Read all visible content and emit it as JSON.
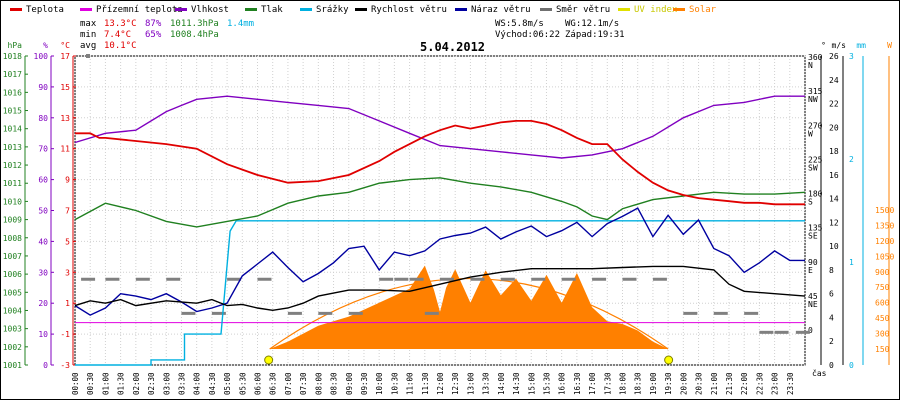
{
  "chart_data": {
    "type": "line",
    "date": "5.04.2012",
    "legend": [
      {
        "label": "Teplota",
        "color": "#e00000"
      },
      {
        "label": "Přízemní teplota",
        "color": "#e000e0"
      },
      {
        "label": "Vlhkost",
        "color": "#8000c0"
      },
      {
        "label": "Tlak",
        "color": "#208020"
      },
      {
        "label": "Srážky",
        "color": "#00b0e0"
      },
      {
        "label": "Rychlost větru",
        "color": "#000000"
      },
      {
        "label": "Náraz větru",
        "color": "#0000a0"
      },
      {
        "label": "Směr větru",
        "color": "#707070"
      },
      {
        "label": "UV index",
        "color": "#e0e000"
      },
      {
        "label": "Solar",
        "color": "#ff8000"
      }
    ],
    "stats": {
      "max_label": "max",
      "max_temp": "13.3°C",
      "max_hum": "87%",
      "max_press": "1011.3hPa",
      "rain": "1.4mm",
      "min_label": "min",
      "min_temp": "7.4°C",
      "min_hum": "65%",
      "min_press": "1008.4hPa",
      "avg_label": "avg",
      "avg_temp": "10.1°C"
    },
    "wind_info": {
      "ws": "WS:5.8m/s",
      "wg": "WG:12.1m/s",
      "sunrise": "Východ:06:22",
      "sunset": "Západ:19:31"
    },
    "left_axes": [
      {
        "unit": "hPa",
        "color": "#208020",
        "ticks": [
          "1018",
          "1017",
          "1016",
          "1015",
          "1014",
          "1013",
          "1012",
          "1011",
          "1010",
          "1009",
          "1008",
          "1007",
          "1006",
          "1005",
          "1004",
          "1003",
          "1002",
          "1001"
        ]
      },
      {
        "unit": "%",
        "color": "#8000c0",
        "ticks": [
          "100",
          "90",
          "80",
          "70",
          "60",
          "50",
          "40",
          "30",
          "20",
          "10",
          "0"
        ]
      },
      {
        "unit": "°C",
        "color": "#e00000",
        "ticks": [
          "17",
          "15",
          "13",
          "11",
          "9",
          "7",
          "5",
          "3",
          "1",
          "-1",
          "-3"
        ]
      }
    ],
    "right_axes": [
      {
        "unit": "°",
        "color": "#000000",
        "ticks": [
          "360",
          "315",
          "270",
          "225",
          "180",
          "135",
          "90",
          "45",
          "0"
        ],
        "dirs": [
          "N",
          "NW",
          "W",
          "SW",
          "S",
          "SE",
          "E",
          "NE",
          ""
        ]
      },
      {
        "unit": "m/s",
        "color": "#000000",
        "ticks": [
          "26",
          "24",
          "22",
          "20",
          "18",
          "16",
          "14",
          "12",
          "10",
          "8",
          "6",
          "4",
          "2",
          "0"
        ]
      },
      {
        "unit": "mm",
        "color": "#00b0e0",
        "ticks": [
          "3",
          "2",
          "1",
          "0"
        ]
      },
      {
        "unit": "W",
        "color": "#ff8000",
        "ticks": [
          "1500",
          "1350",
          "1200",
          "1050",
          "900",
          "750",
          "600",
          "450",
          "300",
          "150"
        ]
      }
    ],
    "x_ticks": [
      "00:00",
      "00:30",
      "01:00",
      "01:30",
      "02:00",
      "02:30",
      "03:00",
      "03:30",
      "04:00",
      "04:30",
      "05:00",
      "05:30",
      "06:00",
      "06:30",
      "07:00",
      "07:30",
      "08:00",
      "08:30",
      "09:00",
      "09:30",
      "10:00",
      "10:30",
      "11:00",
      "11:30",
      "12:00",
      "12:30",
      "13:00",
      "13:30",
      "14:00",
      "14:30",
      "15:00",
      "15:30",
      "16:00",
      "16:30",
      "17:00",
      "17:30",
      "18:00",
      "18:30",
      "19:00",
      "19:30",
      "20:00",
      "20:30",
      "21:00",
      "21:30",
      "22:00",
      "22:30",
      "23:00",
      "23:30"
    ],
    "x_unit": "čas",
    "series": [
      {
        "name": "Teplota",
        "unit": "°C",
        "hours": [
          0,
          0.5,
          0.8,
          1,
          2,
          3,
          4,
          5,
          6,
          7,
          8,
          9,
          10,
          10.5,
          11,
          11.5,
          12,
          12.5,
          13,
          13.5,
          14,
          14.5,
          15,
          15.5,
          16,
          16.5,
          17,
          17.5,
          18,
          18.5,
          19,
          19.5,
          20,
          20.5,
          21,
          21.5,
          22,
          22.5,
          23,
          23.5,
          24
        ],
        "values": [
          12,
          12,
          11.7,
          11.7,
          11.5,
          11.3,
          11,
          10,
          9.3,
          8.8,
          8.9,
          9.3,
          10.2,
          10.8,
          11.3,
          11.8,
          12.2,
          12.5,
          12.3,
          12.5,
          12.7,
          12.8,
          12.8,
          12.6,
          12.2,
          11.7,
          11.3,
          11.3,
          10.3,
          9.5,
          8.8,
          8.3,
          8,
          7.8,
          7.7,
          7.6,
          7.5,
          7.5,
          7.4,
          7.4,
          7.4
        ]
      },
      {
        "name": "Vlhkost",
        "unit": "%",
        "hours": [
          0,
          1,
          2,
          3,
          3.5,
          4,
          5,
          6,
          7,
          8,
          9,
          10,
          11,
          12,
          13,
          14,
          15,
          16,
          17,
          18,
          19,
          20,
          21,
          22,
          23,
          23.5,
          24
        ],
        "values": [
          72,
          75,
          76,
          82,
          84,
          86,
          87,
          86,
          85,
          84,
          83,
          79,
          75,
          71,
          70,
          69,
          68,
          67,
          68,
          70,
          74,
          80,
          84,
          85,
          87,
          87,
          87
        ]
      },
      {
        "name": "Tlak",
        "unit": "hPa",
        "hours": [
          0,
          1,
          2,
          3,
          4,
          5,
          6,
          7,
          8,
          9,
          10,
          11,
          12,
          13,
          14,
          15,
          16,
          16.5,
          17,
          17.5,
          18,
          19,
          20,
          21,
          22,
          23,
          24
        ],
        "values": [
          1009,
          1009.9,
          1009.5,
          1008.9,
          1008.6,
          1008.9,
          1009.2,
          1009.9,
          1010.3,
          1010.5,
          1011,
          1011.2,
          1011.3,
          1011,
          1010.8,
          1010.5,
          1010,
          1009.7,
          1009.2,
          1009,
          1009.6,
          1010.1,
          1010.3,
          1010.5,
          1010.4,
          1010.4,
          1010.5
        ]
      },
      {
        "name": "Srážky",
        "unit": "mm",
        "hours": [
          0,
          2.5,
          2.5,
          3.6,
          3.6,
          4.8,
          5.1,
          5.3,
          24
        ],
        "values": [
          0,
          0,
          0.05,
          0.05,
          0.3,
          0.3,
          1.3,
          1.4,
          1.4
        ]
      },
      {
        "name": "Rychlost větru",
        "unit": "m/s",
        "hours": [
          0,
          0.5,
          1,
          1.5,
          2,
          3,
          4,
          4.5,
          5,
          5.5,
          6,
          6.5,
          7,
          7.5,
          8,
          9,
          10,
          11,
          12,
          13,
          14,
          15,
          16,
          17,
          18,
          19,
          20,
          21,
          21.5,
          22,
          23,
          24
        ],
        "values": [
          5,
          5.4,
          5.2,
          5.5,
          5,
          5.4,
          5.2,
          5.5,
          5,
          5.1,
          4.8,
          4.6,
          4.8,
          5.2,
          5.8,
          6.3,
          6.3,
          6.2,
          6.8,
          7.4,
          7.8,
          8.1,
          8.1,
          8.1,
          8.2,
          8.3,
          8.3,
          8,
          6.8,
          6.2,
          6,
          5.8
        ]
      },
      {
        "name": "Náraz větru",
        "unit": "m/s",
        "hours": [
          0,
          0.5,
          1,
          1.5,
          2,
          2.5,
          3,
          3.5,
          4,
          4.5,
          5,
          5.5,
          6,
          6.5,
          7,
          7.5,
          8,
          8.5,
          9,
          9.5,
          10,
          10.5,
          11,
          11.5,
          12,
          12.5,
          13,
          13.5,
          14,
          14.5,
          15,
          15.5,
          16,
          16.5,
          17,
          17.5,
          18,
          18.5,
          19,
          19.5,
          20,
          20.5,
          21,
          21.5,
          22,
          22.5,
          23,
          23.5,
          24
        ],
        "values": [
          5,
          4.2,
          4.8,
          6,
          5.8,
          5.5,
          6,
          5.3,
          4.5,
          4.8,
          5.2,
          7.5,
          8.5,
          9.5,
          8.2,
          7,
          7.7,
          8.6,
          9.8,
          10,
          8,
          9.5,
          9.2,
          9.6,
          10.6,
          10.9,
          11.1,
          11.6,
          10.6,
          11.2,
          11.7,
          10.8,
          11.3,
          12,
          10.8,
          11.9,
          12.5,
          13.2,
          10.8,
          12.6,
          11,
          12.2,
          9.8,
          9.2,
          7.8,
          8.6,
          9.6,
          8.8,
          8.8
        ]
      },
      {
        "name": "Solar",
        "unit": "W",
        "hours": [
          6.4,
          7,
          8,
          9,
          10,
          11,
          11.5,
          11.8,
          12,
          12.2,
          12.5,
          13,
          13.5,
          14,
          14.5,
          15,
          15.5,
          16,
          16.5,
          17,
          17.5,
          18,
          18.5,
          19,
          19.5
        ],
        "values": [
          0,
          80,
          250,
          350,
          500,
          650,
          900,
          640,
          400,
          660,
          860,
          500,
          850,
          580,
          760,
          520,
          800,
          500,
          820,
          450,
          300,
          270,
          200,
          80,
          0
        ]
      }
    ],
    "markers": [
      {
        "name": "sunrise",
        "time": "06:22"
      },
      {
        "name": "sunset",
        "time": "19:31"
      }
    ]
  }
}
